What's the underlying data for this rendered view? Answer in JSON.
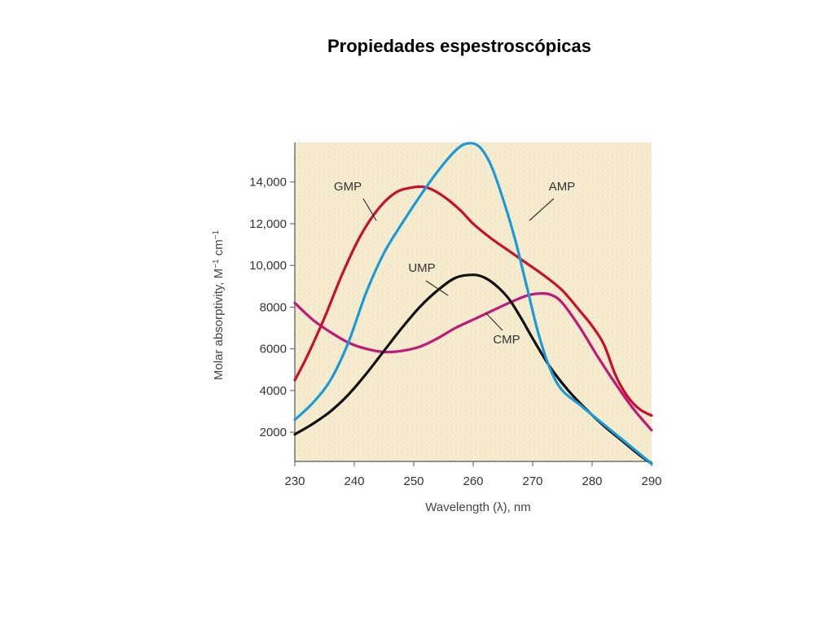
{
  "slide": {
    "title": "Propiedades espestroscópicas"
  },
  "chart_data": {
    "type": "line",
    "title": "",
    "xlabel": "Wavelength (λ), nm",
    "ylabel_main": "Molar absorptivity, M",
    "ylabel_sup1": "−1",
    "ylabel_mid": " cm",
    "ylabel_sup2": "−1",
    "xlim": [
      230,
      290
    ],
    "ylim": [
      600,
      15900
    ],
    "x_ticks": [
      230,
      240,
      250,
      260,
      270,
      280,
      290
    ],
    "x_tick_labels": [
      "230",
      "240",
      "250",
      "260",
      "270",
      "280",
      "290"
    ],
    "y_ticks": [
      2000,
      4000,
      6000,
      8000,
      10000,
      12000,
      14000
    ],
    "y_tick_labels": [
      "2000",
      "4000",
      "6000",
      "8000",
      "10,000",
      "12,000",
      "14,000"
    ],
    "grid": false,
    "colors": {
      "plot_background": "#f6eccf",
      "GMP": "#c8102e",
      "AMP": "#1a9ad6",
      "UMP": "#111111",
      "CMP": "#c2187a"
    },
    "series": [
      {
        "name": "GMP",
        "x": [
          230,
          232,
          235,
          238,
          241,
          244,
          247,
          250,
          252,
          254,
          256,
          258,
          260,
          263,
          266,
          269,
          272,
          275,
          278,
          280,
          282,
          284,
          286,
          288,
          290
        ],
        "y": [
          4500,
          5600,
          7500,
          9600,
          11400,
          12700,
          13500,
          13750,
          13750,
          13500,
          13100,
          12600,
          12000,
          11300,
          10700,
          10100,
          9500,
          8800,
          7800,
          7100,
          6200,
          4700,
          3700,
          3100,
          2800
        ]
      },
      {
        "name": "AMP",
        "x": [
          230,
          233,
          236,
          239,
          242,
          245,
          248,
          251,
          254,
          257,
          259,
          261,
          263,
          265,
          267,
          269,
          271,
          273,
          275,
          278,
          281,
          284,
          287,
          290
        ],
        "y": [
          2600,
          3400,
          4500,
          6300,
          8700,
          10600,
          12000,
          13300,
          14500,
          15500,
          15850,
          15700,
          14800,
          13200,
          11300,
          9000,
          6700,
          5000,
          4000,
          3300,
          2600,
          1900,
          1200,
          500
        ]
      },
      {
        "name": "UMP",
        "x": [
          230,
          233,
          236,
          239,
          242,
          245,
          248,
          251,
          254,
          257,
          260,
          262,
          264,
          266,
          268,
          270,
          273,
          276,
          279,
          282,
          285,
          288,
          290
        ],
        "y": [
          1900,
          2400,
          3000,
          3800,
          4800,
          5900,
          7000,
          8000,
          8800,
          9400,
          9550,
          9400,
          9000,
          8400,
          7500,
          6500,
          5100,
          4000,
          3100,
          2300,
          1600,
          900,
          500
        ]
      },
      {
        "name": "CMP",
        "x": [
          230,
          233,
          236,
          239,
          242,
          245,
          248,
          251,
          254,
          257,
          260,
          263,
          266,
          269,
          271,
          273,
          275,
          278,
          281,
          284,
          287,
          290
        ],
        "y": [
          8200,
          7400,
          6800,
          6300,
          6000,
          5850,
          5900,
          6100,
          6500,
          7000,
          7400,
          7800,
          8200,
          8550,
          8650,
          8600,
          8200,
          7000,
          5600,
          4300,
          3100,
          2100
        ]
      }
    ],
    "annotations": [
      {
        "text": "GMP",
        "series": "GMP"
      },
      {
        "text": "AMP",
        "series": "AMP"
      },
      {
        "text": "UMP",
        "series": "UMP"
      },
      {
        "text": "CMP",
        "series": "CMP"
      }
    ]
  }
}
